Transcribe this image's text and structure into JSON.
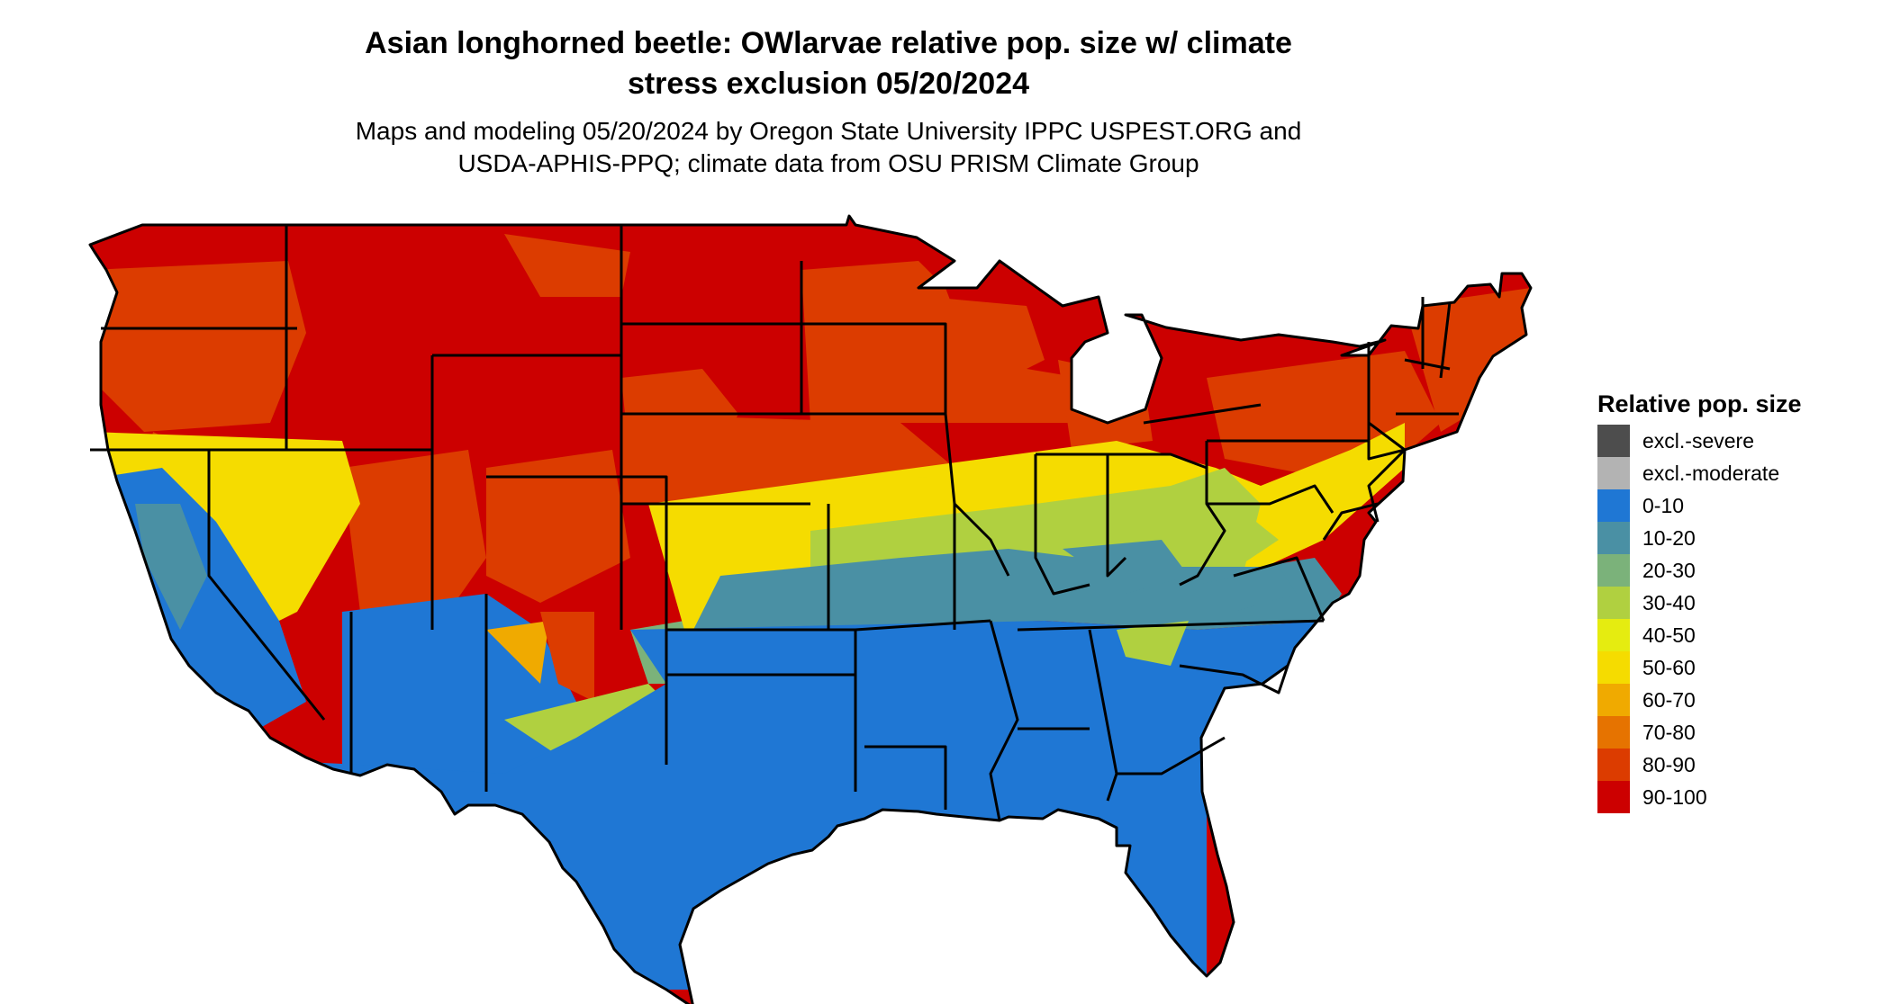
{
  "title_line1": "Asian longhorned beetle: OWlarvae relative pop. size w/ climate",
  "title_line2": "stress exclusion 05/20/2024",
  "subtitle_line1": "Maps and modeling 05/20/2024 by Oregon State University IPPC USPEST.ORG and",
  "subtitle_line2": "USDA-APHIS-PPQ; climate data from OSU PRISM Climate Group",
  "legend": {
    "title": "Relative pop. size",
    "items": [
      {
        "label": "excl.-severe",
        "color": "#4d4d4d"
      },
      {
        "label": "excl.-moderate",
        "color": "#b3b3b3"
      },
      {
        "label": "0-10",
        "color": "#1f77d4"
      },
      {
        "label": "10-20",
        "color": "#4a90a4"
      },
      {
        "label": "20-30",
        "color": "#7bb27a"
      },
      {
        "label": "30-40",
        "color": "#b0d040"
      },
      {
        "label": "40-50",
        "color": "#e5ec10"
      },
      {
        "label": "50-60",
        "color": "#f5dc00"
      },
      {
        "label": "60-70",
        "color": "#f0aa00"
      },
      {
        "label": "70-80",
        "color": "#e67300"
      },
      {
        "label": "80-90",
        "color": "#dc3c00"
      },
      {
        "label": "90-100",
        "color": "#cc0000"
      }
    ]
  }
}
